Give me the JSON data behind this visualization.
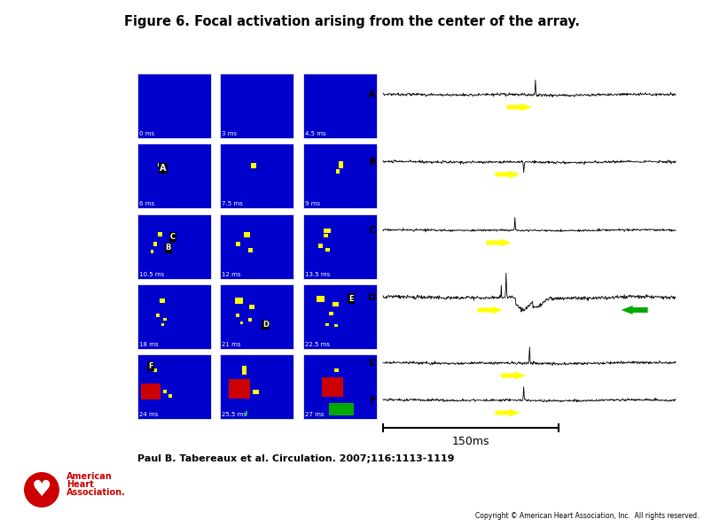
{
  "title": "Figure 6. Focal activation arising from the center of the array.",
  "title_fontsize": 10.5,
  "citation": "Paul B. Tabereaux et al. Circulation. 2007;116:1113-1119",
  "copyright": "Copyright © American Heart Association, Inc.  All rights reserved.",
  "bg_color": "#ffffff",
  "blue": "#0000CC",
  "yellow": "#FFFF00",
  "red": "#CC0000",
  "green": "#00AA00",
  "grid_labels": [
    "0 ms",
    "3 ms",
    "4.5 ms",
    "6 ms",
    "7.5 ms",
    "9 ms",
    "10.5 ms",
    "12 ms",
    "13.5 ms",
    "18 ms",
    "21 ms",
    "22.5 ms",
    "24 ms",
    "25.5 ms",
    "27 ms"
  ],
  "trace_labels": [
    "A",
    "B",
    "C",
    "D",
    "E",
    "F"
  ],
  "scale_bar_label": "150ms"
}
